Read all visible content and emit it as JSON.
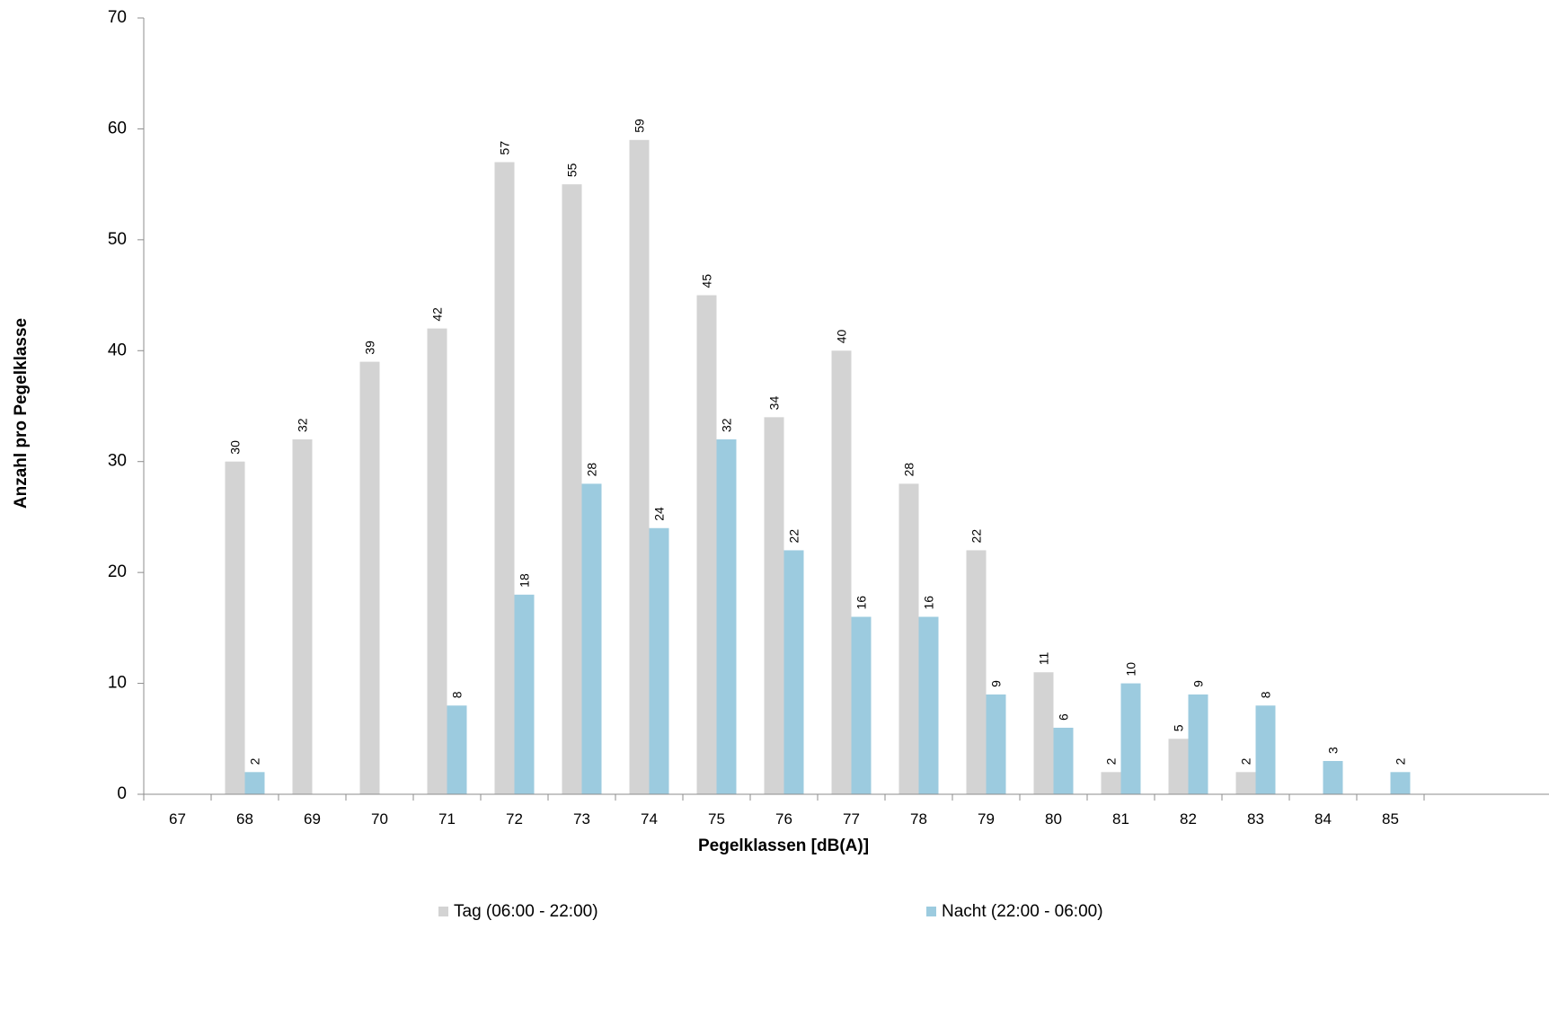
{
  "chart_data": {
    "type": "bar",
    "xlabel": "Pegelklassen [dB(A)]",
    "ylabel": "Anzahl pro Pegelklasse",
    "ylim": [
      0,
      70
    ],
    "yticks": [
      0,
      10,
      20,
      30,
      40,
      50,
      60,
      70
    ],
    "grid": false,
    "legend_position": "bottom",
    "categories": [
      "67",
      "68",
      "69",
      "70",
      "71",
      "72",
      "73",
      "74",
      "75",
      "76",
      "77",
      "78",
      "79",
      "80",
      "81",
      "82",
      "83",
      "84",
      "85"
    ],
    "series": [
      {
        "name": "Tag (06:00 - 22:00)",
        "color": "#d3d3d3",
        "values": [
          null,
          30,
          32,
          39,
          42,
          57,
          55,
          59,
          45,
          34,
          40,
          28,
          22,
          11,
          2,
          5,
          2,
          null,
          null
        ]
      },
      {
        "name": "Nacht (22:00 - 06:00)",
        "color": "#9ccbdf",
        "values": [
          null,
          2,
          null,
          null,
          8,
          18,
          28,
          24,
          32,
          22,
          16,
          16,
          9,
          6,
          10,
          9,
          8,
          3,
          2
        ]
      }
    ]
  }
}
